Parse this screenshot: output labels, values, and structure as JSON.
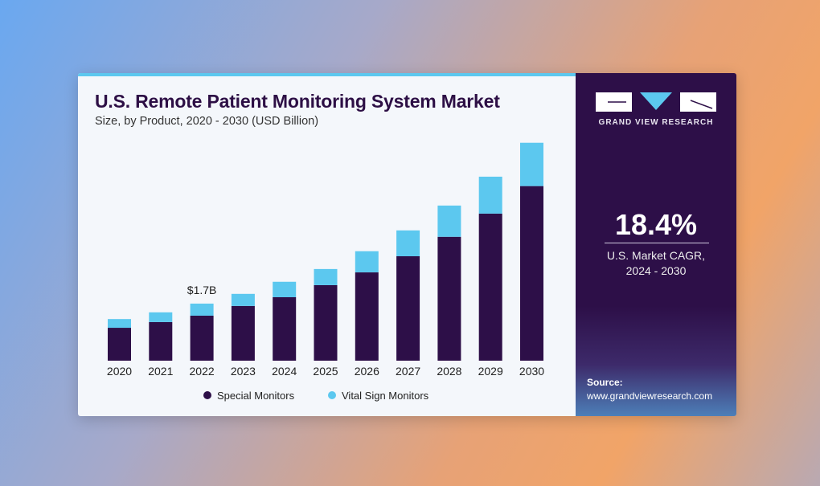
{
  "header": {
    "title": "U.S. Remote Patient Monitoring System Market",
    "subtitle": "Size, by Product, 2020 - 2030 (USD Billion)"
  },
  "sidebar": {
    "brand": "GRAND VIEW RESEARCH",
    "cagr_value": "18.4%",
    "cagr_label_line1": "U.S. Market CAGR,",
    "cagr_label_line2": "2024 - 2030",
    "source_label": "Source:",
    "source_url": "www.grandviewresearch.com"
  },
  "colors": {
    "special": "#2d0f48",
    "vital": "#5cc8ef"
  },
  "chart_data": {
    "type": "bar",
    "stacked": true,
    "title": "U.S. Remote Patient Monitoring System Market",
    "subtitle": "Size, by Product, 2020 - 2030 (USD Billion)",
    "xlabel": "",
    "ylabel": "USD Billion",
    "categories": [
      "2020",
      "2021",
      "2022",
      "2023",
      "2024",
      "2025",
      "2026",
      "2027",
      "2028",
      "2029",
      "2030"
    ],
    "series": [
      {
        "name": "Special Monitors",
        "values": [
          0.98,
          1.15,
          1.34,
          1.63,
          1.89,
          2.25,
          2.63,
          3.11,
          3.69,
          4.38,
          5.2
        ]
      },
      {
        "name": "Vital Sign Monitors",
        "values": [
          0.26,
          0.29,
          0.36,
          0.36,
          0.46,
          0.48,
          0.63,
          0.77,
          0.93,
          1.1,
          1.29
        ]
      }
    ],
    "annotations": [
      {
        "category": "2022",
        "text": "$1.7B"
      }
    ],
    "ylim": [
      0,
      6.6
    ],
    "grid": false,
    "legend": "bottom"
  }
}
